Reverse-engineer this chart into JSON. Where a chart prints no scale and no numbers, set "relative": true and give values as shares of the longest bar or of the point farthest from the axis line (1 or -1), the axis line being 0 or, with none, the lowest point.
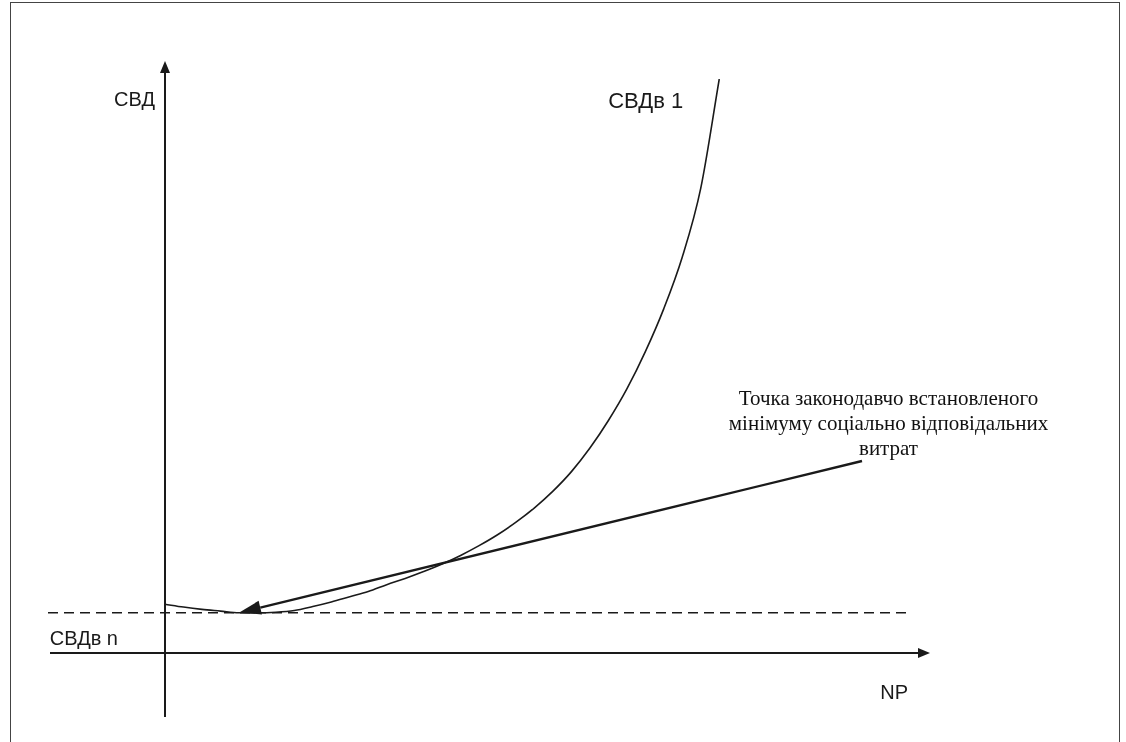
{
  "chart_data": {
    "type": "line",
    "relative": true,
    "tick_labels": false,
    "marker": "none",
    "xlabel": "NP",
    "ylabel": "СВД",
    "categories": [
      null,
      null,
      null,
      null,
      null,
      null,
      null,
      null,
      null,
      null,
      null,
      null,
      null,
      null,
      null,
      null,
      null,
      null,
      null,
      null,
      null,
      null,
      null,
      null,
      null,
      null,
      null,
      null,
      null,
      null,
      null,
      null,
      null,
      null,
      null,
      null,
      null,
      null,
      null,
      null,
      null
    ],
    "series": [
      {
        "name": "СВДв 1",
        "color": "#1a1a1a",
        "values": [
          0.085,
          0.08,
          0.076,
          0.073,
          0.07,
          0.07,
          0.071,
          0.074,
          0.081,
          0.089,
          0.098,
          0.107,
          0.119,
          0.13,
          0.142,
          0.155,
          0.17,
          0.187,
          0.206,
          0.228,
          0.253,
          0.282,
          0.316,
          0.357,
          0.405,
          0.46,
          0.525,
          0.6,
          0.69,
          0.81,
          1.0,
          null,
          null,
          null,
          null,
          null,
          null,
          null,
          null,
          null,
          null
        ]
      }
    ],
    "ref_lines": [
      {
        "axis": "y",
        "value": 0.07,
        "label": "СВДв n",
        "line_style": "dashed",
        "color": "#1a1a1a"
      }
    ],
    "annotations": [
      "Точка законодавчо встановленого мінімуму соціально відповідальних витрат"
    ]
  }
}
